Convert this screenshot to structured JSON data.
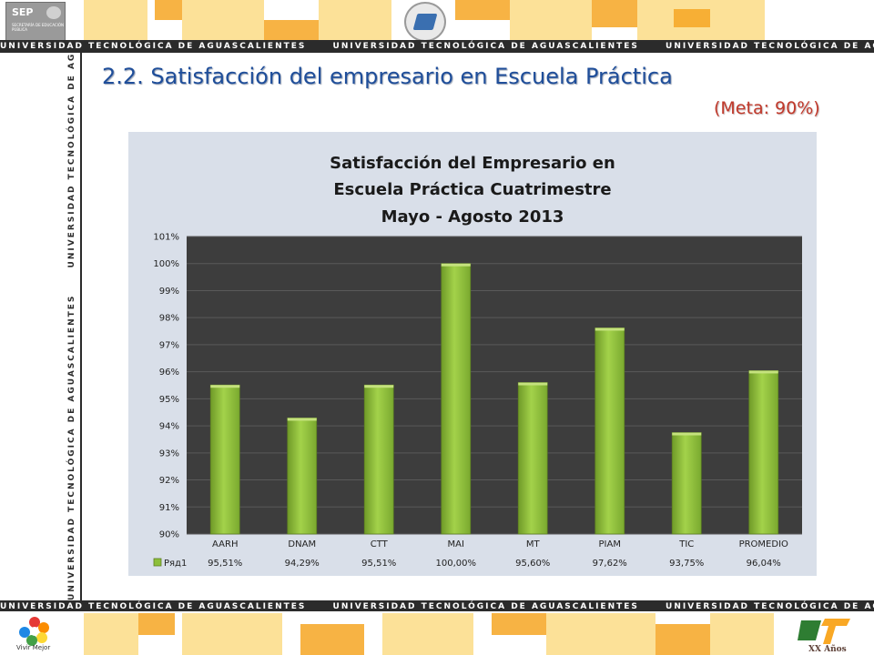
{
  "header": {
    "sep_label": "SEP",
    "sep_small_text": "SECRETARÍA DE EDUCACIÓN PÚBLICA",
    "university_strip": "UNIVERSIDAD TECNOLÓGICA DE AGUASCALIENTES",
    "strip_repeat": [
      "UNIVERSIDAD TECNOLÓGICA DE AGUASCALIENTES",
      "UNIVERSIDAD TECNOLÓGICA DE AGUASCALIENTES",
      "UNIVERSIDAD TECNOLÓGICA DE AGUASCALIENTES"
    ]
  },
  "slide": {
    "title": "2.2. Satisfacción del empresario en Escuela Práctica",
    "subtitle": "(Meta: 90%)"
  },
  "footer": {
    "left_logo_text": "Vivir Mejor",
    "right_logo_text": "XX Años"
  },
  "colors": {
    "title": "#1f4e9a",
    "subtitle": "#c0392b",
    "bar": "#8dbf3a",
    "plot_bg": "#3d3d3d",
    "chart_bg": "#d9dfe9",
    "band_orange": "#f6a623",
    "band_yellow": "#fbdc86"
  },
  "chart_data": {
    "type": "bar",
    "title": [
      "Satisfacción del Empresario en",
      "Escuela Práctica Cuatrimestre",
      "Mayo - Agosto 2013"
    ],
    "categories": [
      "AARH",
      "DNAM",
      "CTT",
      "MAI",
      "MT",
      "PIAM",
      "TIC",
      "PROMEDIO"
    ],
    "series": [
      {
        "name": "Ряд1",
        "values": [
          95.51,
          94.29,
          95.51,
          100.0,
          95.6,
          97.62,
          93.75,
          96.04
        ],
        "labels": [
          "95,51%",
          "94,29%",
          "95,51%",
          "100,00%",
          "95,60%",
          "97,62%",
          "93,75%",
          "96,04%"
        ]
      }
    ],
    "ylim": [
      90,
      101
    ],
    "yticks": [
      "90%",
      "91%",
      "92%",
      "93%",
      "94%",
      "95%",
      "96%",
      "97%",
      "98%",
      "99%",
      "100%",
      "101%"
    ],
    "xlabel": "",
    "ylabel": "",
    "grid": true,
    "legend": "data-table-bottom"
  }
}
